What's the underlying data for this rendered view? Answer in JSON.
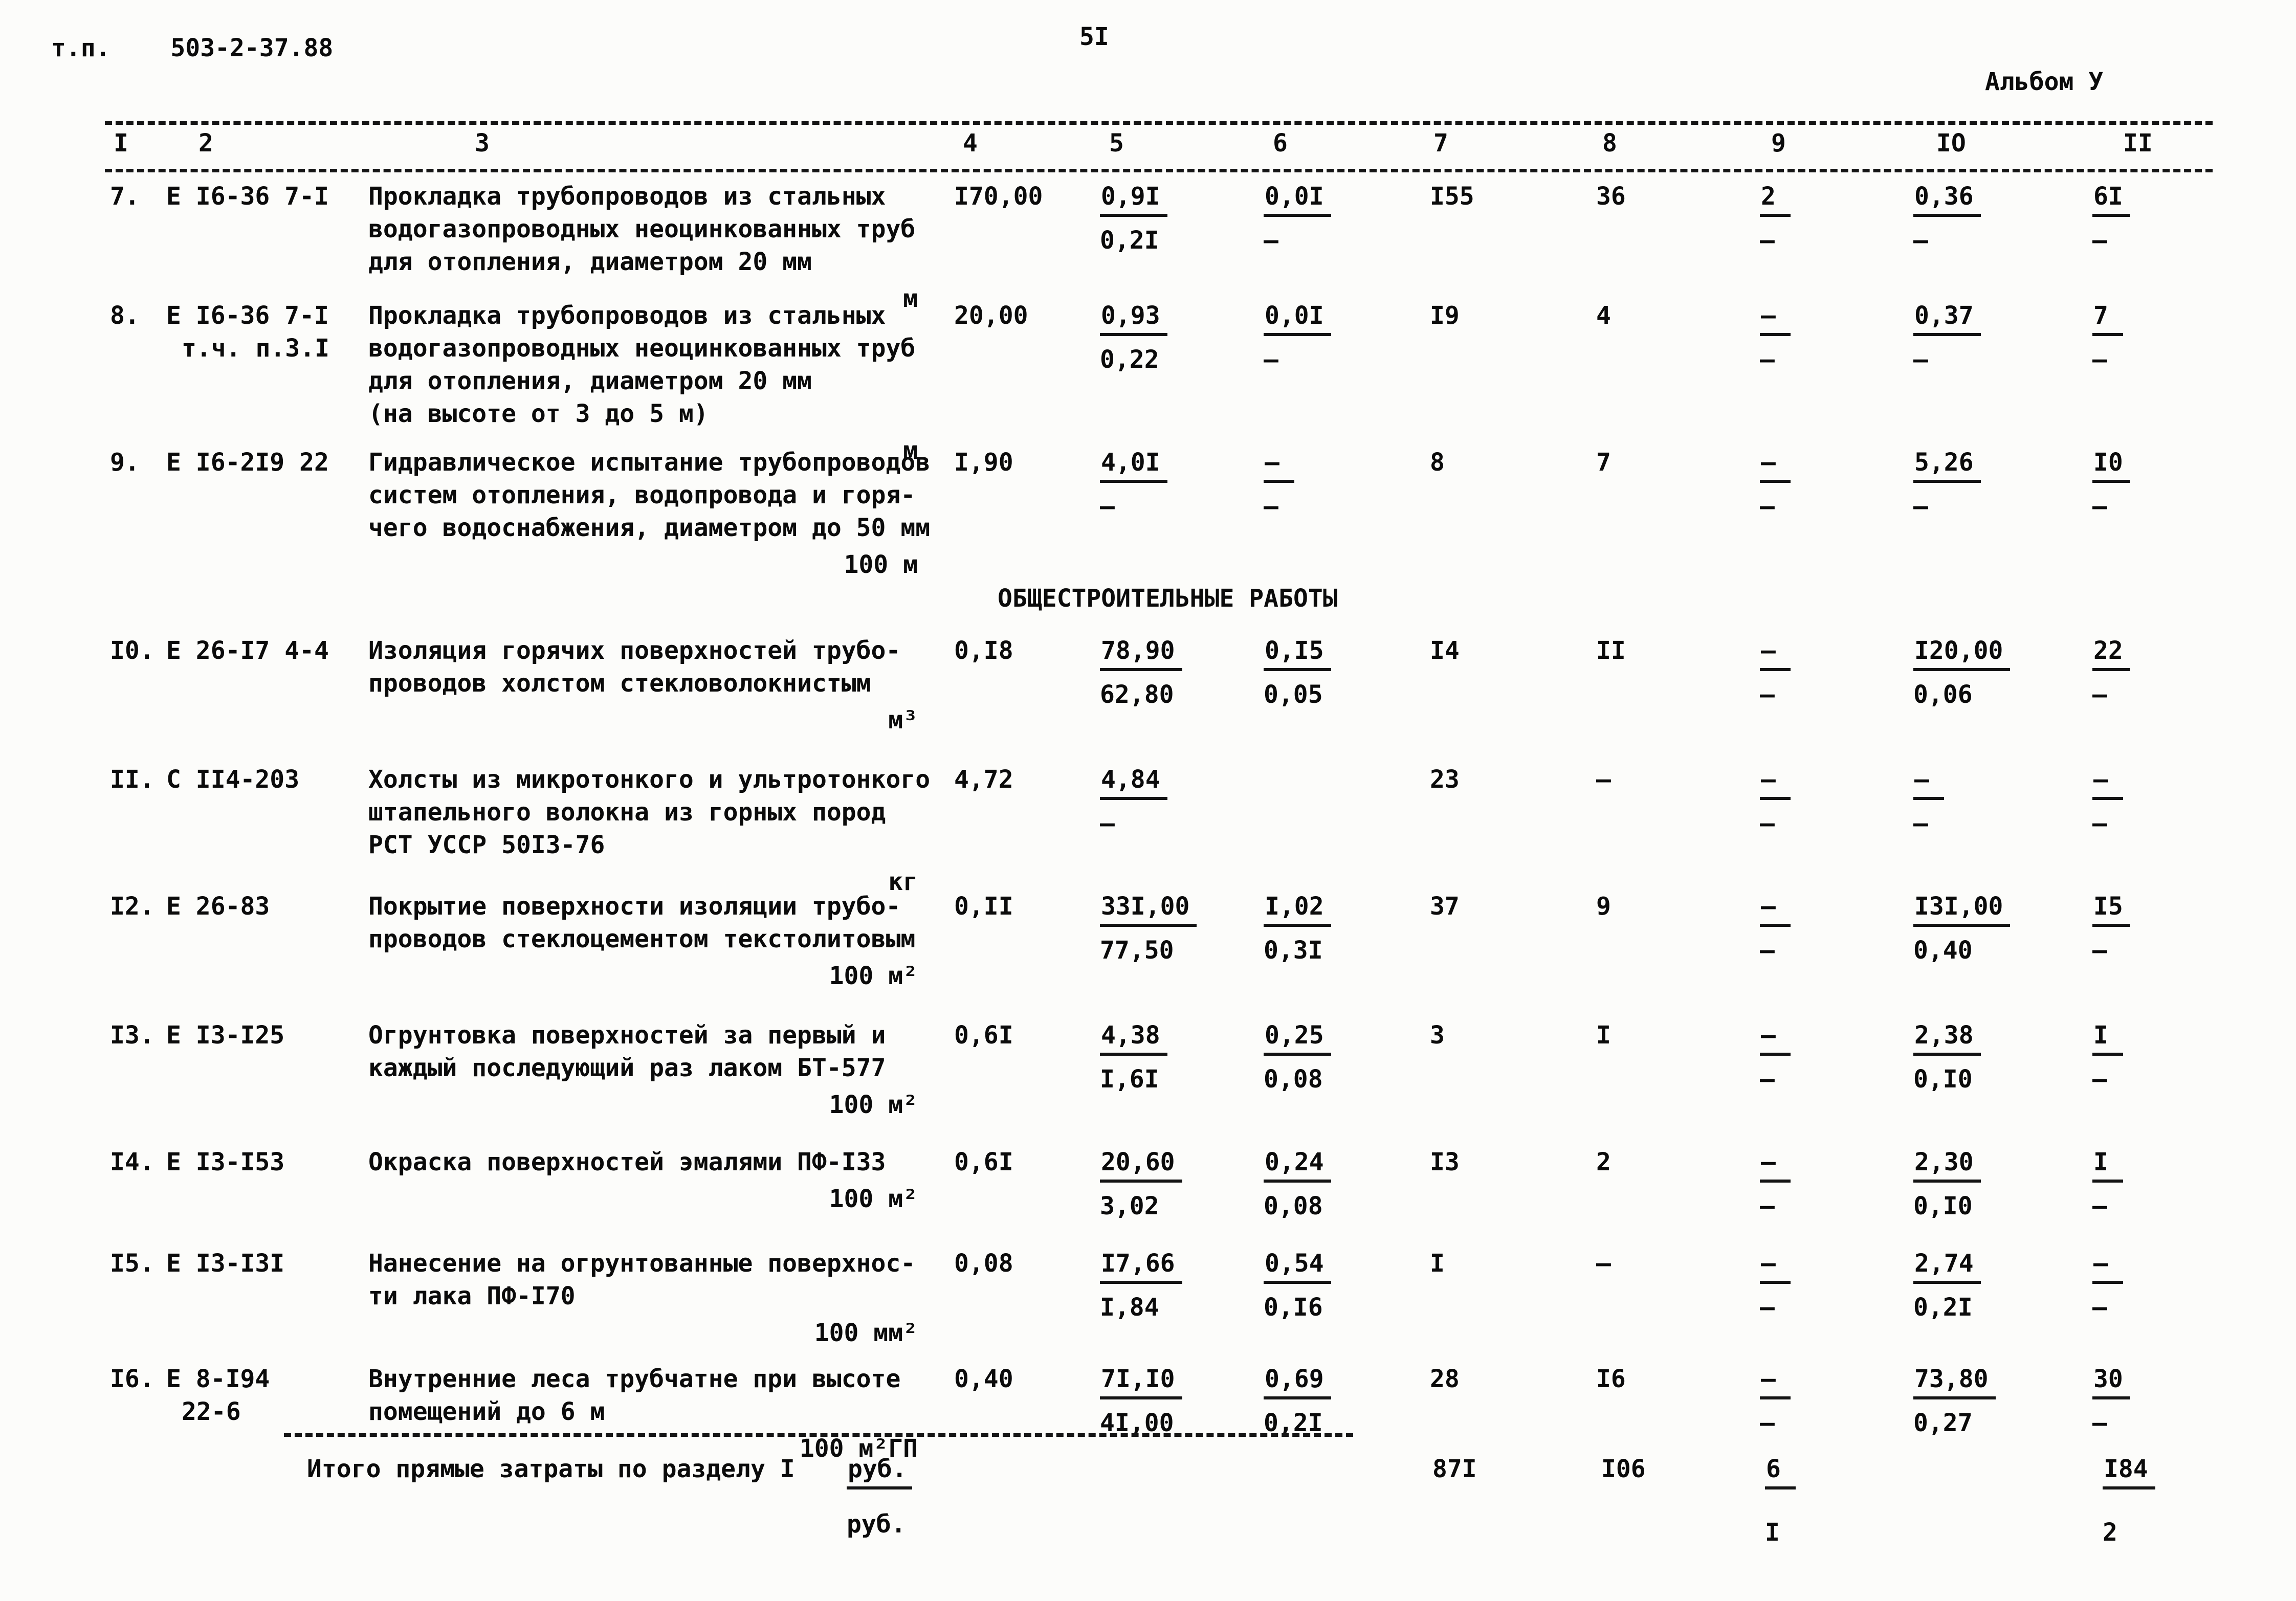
{
  "page": {
    "doc_type_label": "т.п.",
    "doc_code": "503-2-37.88",
    "page_number": "5I",
    "album": "Альбом У"
  },
  "table": {
    "column_headers": [
      "I",
      "2",
      "3",
      "4",
      "5",
      "6",
      "7",
      "8",
      "9",
      "IO",
      "II"
    ],
    "section_heading": "ОБЩЕСТРОИТЕЛЬНЫЕ РАБОТЫ",
    "rows": [
      {
        "num": "7.",
        "code": [
          "Е I6-36 7-I"
        ],
        "desc": [
          "Прокладка трубопроводов из стальных",
          "водогазопроводных неоцинкованных труб",
          "для отопления, диаметром 20 мм"
        ],
        "unit": "м",
        "c4": "I70,00",
        "c5": {
          "t": "0,9I",
          "b": "0,2I",
          "u": true
        },
        "c6": {
          "t": "0,0I",
          "b": "–",
          "u": true
        },
        "c7": "I55",
        "c8": "36",
        "c9": {
          "t": "2",
          "b": "–",
          "u": true
        },
        "c10": {
          "t": "0,36",
          "b": "–",
          "u": true
        },
        "c11": {
          "t": "6I",
          "b": "–",
          "u": true
        }
      },
      {
        "num": "8.",
        "code": [
          "Е I6-36 7-I",
          "т.ч. п.3.I"
        ],
        "desc": [
          "Прокладка трубопроводов из стальных",
          "водогазопроводных неоцинкованных труб",
          "для отопления, диаметром 20 мм",
          "(на высоте от 3 до 5 м)"
        ],
        "unit": "м",
        "c4": "20,00",
        "c5": {
          "t": "0,93",
          "b": "0,22",
          "u": true
        },
        "c6": {
          "t": "0,0I",
          "b": "–",
          "u": true
        },
        "c7": "I9",
        "c8": "4",
        "c9": {
          "t": "–",
          "b": "–",
          "u": true
        },
        "c10": {
          "t": "0,37",
          "b": "–",
          "u": true
        },
        "c11": {
          "t": "7",
          "b": "–",
          "u": true
        }
      },
      {
        "num": "9.",
        "code": [
          "Е I6-2I9 22"
        ],
        "desc": [
          "Гидравлическое испытание трубопроводов",
          "систем отопления, водопровода и горя-",
          "чего водоснабжения, диаметром до 50 мм"
        ],
        "unit": "100 м",
        "c4": "I,90",
        "c5": {
          "t": "4,0I",
          "b": "–",
          "u": true
        },
        "c6": {
          "t": "–",
          "b": "–",
          "u": true
        },
        "c7": "8",
        "c8": "7",
        "c9": {
          "t": "–",
          "b": "–",
          "u": true
        },
        "c10": {
          "t": "5,26",
          "b": "–",
          "u": true
        },
        "c11": {
          "t": "I0",
          "b": "–",
          "u": true
        }
      },
      {
        "num": "I0.",
        "code": [
          "Е 26-I7 4-4"
        ],
        "desc": [
          "Изоляция горячих поверхностей трубо-",
          "проводов холстом стекловолокнистым"
        ],
        "unit": "м³",
        "c4": "0,I8",
        "c5": {
          "t": "78,90",
          "b": "62,80",
          "u": true
        },
        "c6": {
          "t": "0,I5",
          "b": "0,05",
          "u": true
        },
        "c7": "I4",
        "c8": "II",
        "c9": {
          "t": "–",
          "b": "–",
          "u": true
        },
        "c10": {
          "t": "I20,00",
          "b": "0,06",
          "u": true
        },
        "c11": {
          "t": "22",
          "b": "–",
          "u": true
        }
      },
      {
        "num": "II.",
        "code": [
          "С II4-203"
        ],
        "desc": [
          "Холсты из микротонкого и ультротонкого",
          "штапельного волокна из горных пород",
          "РСТ УССР  50I3-76"
        ],
        "unit": "кг",
        "c4": "4,72",
        "c5": {
          "t": "4,84",
          "b": "–",
          "u": true
        },
        "c6": null,
        "c7": "23",
        "c8": "–",
        "c9": {
          "t": "–",
          "b": "–",
          "u": true
        },
        "c10": {
          "t": "–",
          "b": "–",
          "u": true
        },
        "c11": {
          "t": "–",
          "b": "–",
          "u": true
        }
      },
      {
        "num": "I2.",
        "code": [
          "Е 26-83"
        ],
        "desc": [
          "Покрытие поверхности изоляции трубо-",
          "проводов стеклоцементом текстолитовым"
        ],
        "unit": "100 м²",
        "c4": "0,II",
        "c5": {
          "t": "33I,00",
          "b": "77,50",
          "u": true
        },
        "c6": {
          "t": "I,02",
          "b": "0,3I",
          "u": true
        },
        "c7": "37",
        "c8": "9",
        "c9": {
          "t": "–",
          "b": "–",
          "u": true
        },
        "c10": {
          "t": "I3I,00",
          "b": "0,40",
          "u": true
        },
        "c11": {
          "t": "I5",
          "b": "–",
          "u": true
        }
      },
      {
        "num": "I3.",
        "code": [
          "Е I3-I25"
        ],
        "desc": [
          "Огрунтовка поверхностей за первый и",
          "каждый последующий раз лаком БТ-577"
        ],
        "unit": "100 м²",
        "c4": "0,6I",
        "c5": {
          "t": "4,38",
          "b": "I,6I",
          "u": true
        },
        "c6": {
          "t": "0,25",
          "b": "0,08",
          "u": true
        },
        "c7": "3",
        "c8": "I",
        "c9": {
          "t": "–",
          "b": "–",
          "u": true
        },
        "c10": {
          "t": "2,38",
          "b": "0,I0",
          "u": true
        },
        "c11": {
          "t": "I",
          "b": "–",
          "u": true
        }
      },
      {
        "num": "I4.",
        "code": [
          "Е I3-I53"
        ],
        "desc": [
          "Окраска поверхностей эмалями ПФ-I33"
        ],
        "unit": "100 м²",
        "c4": "0,6I",
        "c5": {
          "t": "20,60",
          "b": "3,02",
          "u": true
        },
        "c6": {
          "t": "0,24",
          "b": "0,08",
          "u": true
        },
        "c7": "I3",
        "c8": "2",
        "c9": {
          "t": "–",
          "b": "–",
          "u": true
        },
        "c10": {
          "t": "2,30",
          "b": "0,I0",
          "u": true
        },
        "c11": {
          "t": "I",
          "b": "–",
          "u": true
        }
      },
      {
        "num": "I5.",
        "code": [
          "Е I3-I3I"
        ],
        "desc": [
          "Нанесение на огрунтованные поверхнос-",
          "ти лака ПФ-I70"
        ],
        "unit": "100 мм²",
        "c4": "0,08",
        "c5": {
          "t": "I7,66",
          "b": "I,84",
          "u": true
        },
        "c6": {
          "t": "0,54",
          "b": "0,I6",
          "u": true
        },
        "c7": "I",
        "c8": "–",
        "c9": {
          "t": "–",
          "b": "–",
          "u": true
        },
        "c10": {
          "t": "2,74",
          "b": "0,2I",
          "u": true
        },
        "c11": {
          "t": "–",
          "b": "–",
          "u": true
        }
      },
      {
        "num": "I6.",
        "code": [
          "Е 8-I94",
          "22-6"
        ],
        "desc": [
          "Внутренние леса трубчатне при высоте",
          "помещений до 6 м"
        ],
        "unit": "100 м²ГП",
        "c4": "0,40",
        "c5": {
          "t": "7I,I0",
          "b": "4I,00",
          "u": true
        },
        "c6": {
          "t": "0,69",
          "b": "0,2I",
          "u": true
        },
        "c7": "28",
        "c8": "I6",
        "c9": {
          "t": "–",
          "b": "–",
          "u": true
        },
        "c10": {
          "t": "73,80",
          "b": "0,27",
          "u": true
        },
        "c11": {
          "t": "30",
          "b": "–",
          "u": true
        }
      }
    ],
    "totals": {
      "label": "Итого прямые затраты по разделу I",
      "unit_top": "руб.",
      "unit_bottom": "руб.",
      "c7": "87I",
      "c8": "I06",
      "c9": {
        "t": "6",
        "b": "I",
        "u": true
      },
      "c11": {
        "t": "I84",
        "b": "2",
        "u": true
      }
    }
  }
}
